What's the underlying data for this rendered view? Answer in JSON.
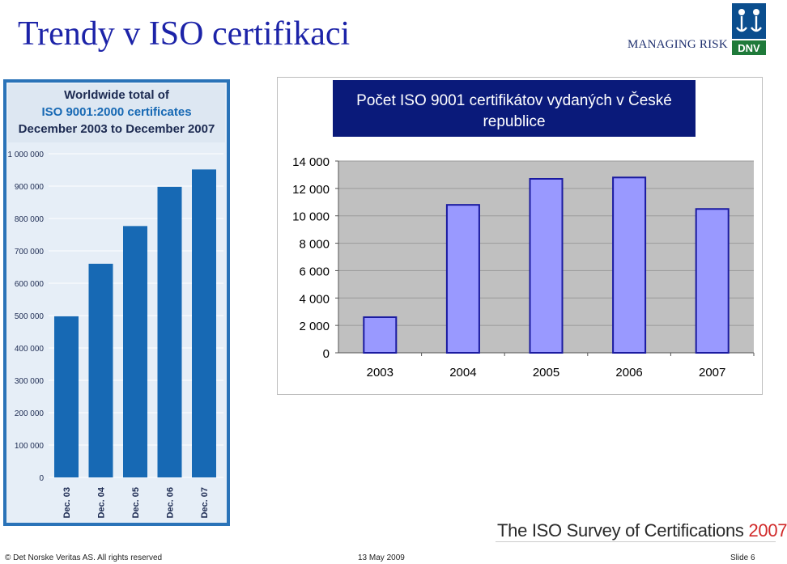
{
  "slide": {
    "title": "Trendy v ISO certifikaci",
    "brand": "MANAGING RISK",
    "logo_text": "DNV",
    "footer_left": "© Det Norske Veritas AS. All rights reserved",
    "footer_center": "13 May 2009",
    "footer_right": "Slide 6",
    "iso_survey_text": "The ISO Survey of Certifications",
    "iso_survey_year": "2007"
  },
  "colors": {
    "title": "#1c23a8",
    "left_bar": "#1769b4",
    "left_panel_bg": "#e6eef7",
    "left_panel_frame": "#2a73b8",
    "left_header_bg": "#dde7f2",
    "right_bar": "#9999ff",
    "right_bar_border": "#1a1aa0",
    "right_plot_bg": "#c0c0c0",
    "right_title_bg": "#0a1a7a",
    "iso_red": "#d12a2a"
  },
  "chart_data": [
    {
      "type": "bar",
      "title": [
        "Worldwide total of",
        "ISO 9001:2000 certificates",
        "December 2003 to December 2007"
      ],
      "categories": [
        "Dec. 03",
        "Dec. 04",
        "Dec. 05",
        "Dec. 06",
        "Dec. 07"
      ],
      "values": [
        497919,
        660132,
        776608,
        897866,
        951486
      ],
      "ylim": [
        0,
        1000000
      ],
      "yticks": [
        0,
        100000,
        200000,
        300000,
        400000,
        500000,
        600000,
        700000,
        800000,
        900000,
        1000000
      ],
      "ytick_labels": [
        "0",
        "100 000",
        "200 000",
        "300 000",
        "400 000",
        "500 000",
        "600 000",
        "700 000",
        "800 000",
        "900 000",
        "1 000 000"
      ],
      "grid": true
    },
    {
      "type": "bar",
      "title": [
        "Počet ISO 9001 certifikátov vydaných v České",
        "republice"
      ],
      "categories": [
        "2003",
        "2004",
        "2005",
        "2006",
        "2007"
      ],
      "values": [
        2600,
        10800,
        12700,
        12800,
        10500
      ],
      "ylim": [
        0,
        14000
      ],
      "yticks": [
        0,
        2000,
        4000,
        6000,
        8000,
        10000,
        12000,
        14000
      ],
      "ytick_labels": [
        "0",
        "2 000",
        "4 000",
        "6 000",
        "8 000",
        "10 000",
        "12 000",
        "14 000"
      ],
      "grid": true
    }
  ]
}
